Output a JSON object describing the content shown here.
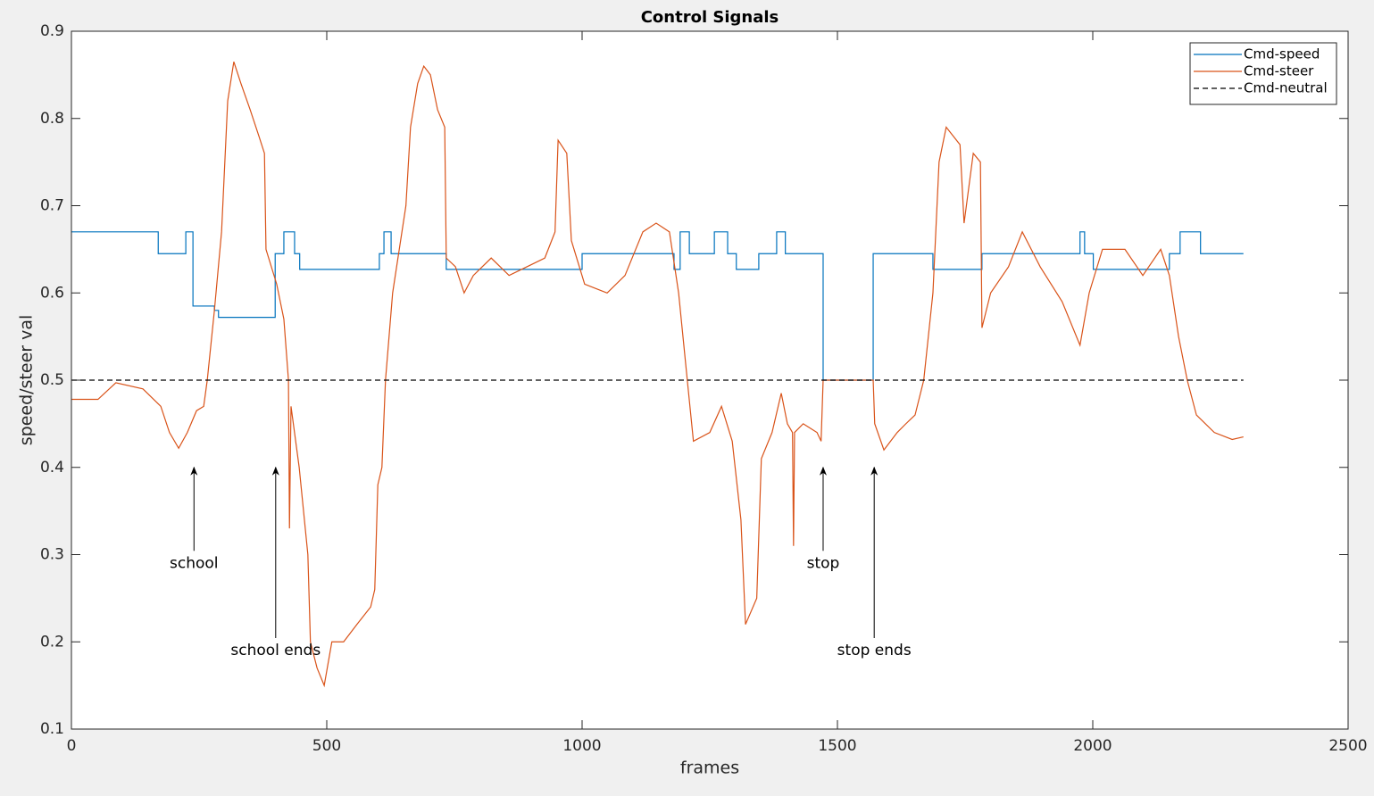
{
  "chart_data": {
    "type": "line",
    "title": "Control Signals",
    "xlabel": "frames",
    "ylabel": "speed/steer val",
    "xlim": [
      0,
      2500
    ],
    "xticks": [
      0,
      500,
      1000,
      1500,
      2000,
      2500
    ],
    "ylim": [
      0.1,
      0.9
    ],
    "yticks": [
      0.1,
      0.2,
      0.3,
      0.4,
      0.5,
      0.6,
      0.7,
      0.8,
      0.9
    ],
    "legend": "northeast",
    "series": [
      {
        "name": "Cmd-speed",
        "color": "#0072bd",
        "dash": "solid",
        "x": [
          0,
          170,
          170,
          224,
          224,
          238,
          238,
          280,
          280,
          288,
          288,
          399,
          399,
          416,
          416,
          437,
          437,
          447,
          447,
          603,
          603,
          612,
          612,
          626,
          626,
          734,
          734,
          1000,
          1000,
          1180,
          1180,
          1192,
          1192,
          1210,
          1210,
          1259,
          1259,
          1285,
          1285,
          1302,
          1302,
          1346,
          1346,
          1381,
          1381,
          1398,
          1398,
          1472,
          1472,
          1570,
          1570,
          1687,
          1687,
          1783,
          1783,
          1975,
          1975,
          1984,
          1984,
          2001,
          2001,
          2150,
          2150,
          2171,
          2171,
          2211,
          2211,
          2295
        ],
        "values": [
          0.67,
          0.67,
          0.645,
          0.645,
          0.67,
          0.67,
          0.585,
          0.585,
          0.58,
          0.58,
          0.572,
          0.572,
          0.645,
          0.645,
          0.67,
          0.67,
          0.645,
          0.645,
          0.627,
          0.627,
          0.645,
          0.645,
          0.67,
          0.67,
          0.645,
          0.645,
          0.627,
          0.627,
          0.645,
          0.645,
          0.627,
          0.627,
          0.67,
          0.67,
          0.645,
          0.645,
          0.67,
          0.67,
          0.645,
          0.645,
          0.627,
          0.627,
          0.645,
          0.645,
          0.67,
          0.67,
          0.645,
          0.645,
          0.5,
          0.5,
          0.645,
          0.645,
          0.627,
          0.627,
          0.645,
          0.645,
          0.67,
          0.67,
          0.645,
          0.645,
          0.627,
          0.627,
          0.645,
          0.645,
          0.67,
          0.67,
          0.645,
          0.645
        ]
      },
      {
        "name": "Cmd-steer",
        "color": "#d95319",
        "dash": "solid",
        "x": [
          0,
          52,
          87,
          140,
          175,
          192,
          210,
          227,
          245,
          259,
          266,
          280,
          294,
          306,
          318,
          332,
          350,
          367,
          378,
          381,
          402,
          416,
          425,
          427,
          430,
          446,
          463,
          468,
          481,
          495,
          510,
          533,
          559,
          586,
          594,
          600,
          608,
          615,
          629,
          655,
          664,
          678,
          690,
          703,
          717,
          731,
          734,
          752,
          769,
          787,
          822,
          857,
          892,
          927,
          947,
          953,
          970,
          979,
          1005,
          1049,
          1084,
          1119,
          1145,
          1171,
          1189,
          1206,
          1218,
          1250,
          1273,
          1294,
          1311,
          1320,
          1342,
          1351,
          1372,
          1390,
          1402,
          1412,
          1414,
          1416,
          1433,
          1460,
          1468,
          1472,
          1570,
          1573,
          1591,
          1617,
          1634,
          1652,
          1669,
          1687,
          1699,
          1713,
          1740,
          1748,
          1766,
          1780,
          1783,
          1800,
          1835,
          1862,
          1897,
          1940,
          1975,
          1993,
          2019,
          2063,
          2098,
          2133,
          2150,
          2168,
          2185,
          2203,
          2238,
          2273,
          2295
        ],
        "values": [
          0.478,
          0.478,
          0.497,
          0.49,
          0.47,
          0.44,
          0.422,
          0.44,
          0.465,
          0.47,
          0.5,
          0.58,
          0.67,
          0.82,
          0.865,
          0.84,
          0.81,
          0.78,
          0.76,
          0.65,
          0.61,
          0.57,
          0.5,
          0.33,
          0.47,
          0.4,
          0.3,
          0.2,
          0.17,
          0.15,
          0.2,
          0.2,
          0.22,
          0.24,
          0.26,
          0.38,
          0.4,
          0.5,
          0.6,
          0.7,
          0.79,
          0.84,
          0.86,
          0.85,
          0.81,
          0.79,
          0.64,
          0.63,
          0.6,
          0.62,
          0.64,
          0.62,
          0.63,
          0.64,
          0.67,
          0.775,
          0.76,
          0.66,
          0.61,
          0.6,
          0.62,
          0.67,
          0.68,
          0.67,
          0.6,
          0.5,
          0.43,
          0.44,
          0.47,
          0.43,
          0.34,
          0.22,
          0.25,
          0.41,
          0.44,
          0.485,
          0.45,
          0.44,
          0.31,
          0.44,
          0.45,
          0.44,
          0.43,
          0.5,
          0.5,
          0.45,
          0.42,
          0.44,
          0.45,
          0.46,
          0.5,
          0.6,
          0.75,
          0.79,
          0.77,
          0.68,
          0.76,
          0.75,
          0.56,
          0.6,
          0.63,
          0.67,
          0.63,
          0.59,
          0.54,
          0.6,
          0.65,
          0.65,
          0.62,
          0.65,
          0.62,
          0.55,
          0.5,
          0.46,
          0.44,
          0.432,
          0.435
        ]
      },
      {
        "name": "Cmd-neutral",
        "color": "#000000",
        "dash": "dashed",
        "x": [
          0,
          2295
        ],
        "values": [
          0.5,
          0.5
        ]
      }
    ],
    "annotations": [
      {
        "text": "school",
        "x": 240,
        "y": 0.29,
        "tip": 0.4
      },
      {
        "text": "school ends",
        "x": 400,
        "y": 0.19,
        "tip": 0.4
      },
      {
        "text": "stop",
        "x": 1472,
        "y": 0.29,
        "tip": 0.4
      },
      {
        "text": "stop ends",
        "x": 1572,
        "y": 0.19,
        "tip": 0.4
      }
    ]
  }
}
